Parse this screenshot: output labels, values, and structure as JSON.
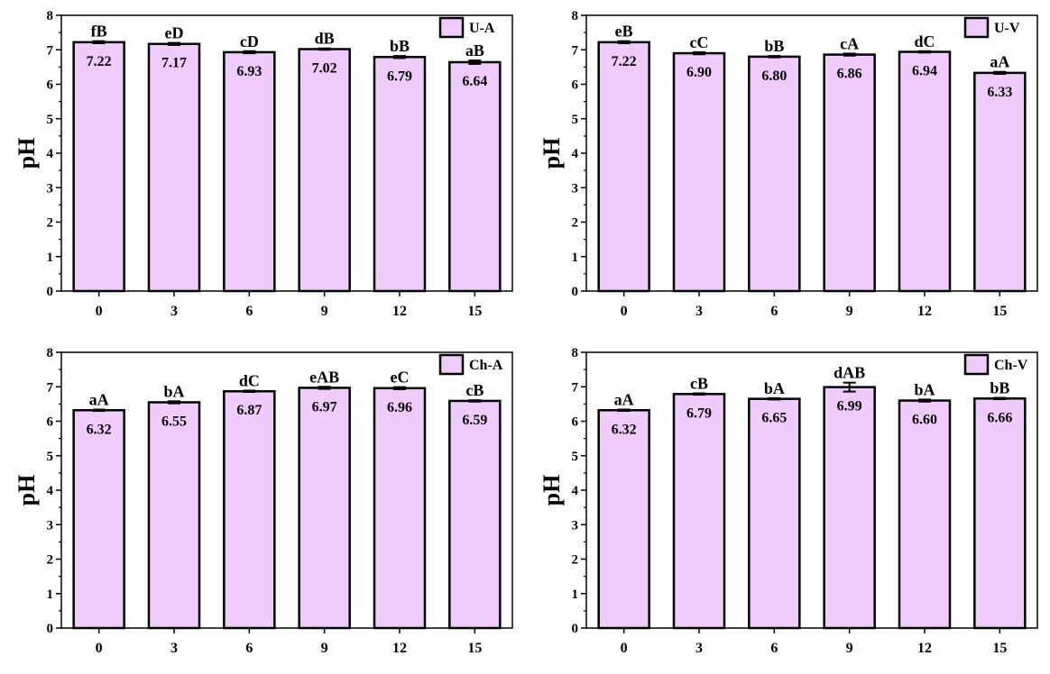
{
  "colors": {
    "bar_fill": "#f0ccfc",
    "bar_stroke": "#000000",
    "axis": "#000000"
  },
  "chart_data": [
    {
      "type": "bar",
      "ylabel": "pH",
      "ylim": [
        0,
        8
      ],
      "yticks": [
        "0",
        "1",
        "2",
        "3",
        "4",
        "5",
        "6",
        "7",
        "8"
      ],
      "categories": [
        "0",
        "3",
        "6",
        "9",
        "12",
        "15"
      ],
      "legend": {
        "label": "U-A",
        "position": "top-right"
      },
      "values": [
        7.22,
        7.17,
        6.93,
        7.02,
        6.79,
        6.64
      ],
      "value_labels": [
        "7.22",
        "7.17",
        "6.93",
        "7.02",
        "6.79",
        "6.64"
      ],
      "letters": [
        "fB",
        "eD",
        "cD",
        "dB",
        "bB",
        "aB"
      ],
      "errors": [
        0.03,
        0.03,
        0.03,
        0.02,
        0.03,
        0.05
      ]
    },
    {
      "type": "bar",
      "ylabel": "pH",
      "ylim": [
        0,
        8
      ],
      "yticks": [
        "0",
        "1",
        "2",
        "3",
        "4",
        "5",
        "6",
        "7",
        "8"
      ],
      "categories": [
        "0",
        "3",
        "6",
        "9",
        "12",
        "15"
      ],
      "legend": {
        "label": "U-V",
        "position": "top-right"
      },
      "values": [
        7.22,
        6.9,
        6.8,
        6.86,
        6.94,
        6.33
      ],
      "value_labels": [
        "7.22",
        "6.90",
        "6.80",
        "6.86",
        "6.94",
        "6.33"
      ],
      "letters": [
        "eB",
        "cC",
        "bB",
        "cA",
        "dC",
        "aA"
      ],
      "errors": [
        0.03,
        0.03,
        0.02,
        0.03,
        0.02,
        0.03
      ]
    },
    {
      "type": "bar",
      "ylabel": "pH",
      "ylim": [
        0,
        8
      ],
      "yticks": [
        "0",
        "1",
        "2",
        "3",
        "4",
        "5",
        "6",
        "7",
        "8"
      ],
      "categories": [
        "0",
        "3",
        "6",
        "9",
        "12",
        "15"
      ],
      "legend": {
        "label": "Ch-A",
        "position": "top-right"
      },
      "values": [
        6.32,
        6.55,
        6.87,
        6.97,
        6.96,
        6.59
      ],
      "value_labels": [
        "6.32",
        "6.55",
        "6.87",
        "6.97",
        "6.96",
        "6.59"
      ],
      "letters": [
        "aA",
        "bA",
        "dC",
        "eAB",
        "eC",
        "cB"
      ],
      "errors": [
        0.02,
        0.03,
        0.02,
        0.03,
        0.03,
        0.02
      ]
    },
    {
      "type": "bar",
      "ylabel": "pH",
      "ylim": [
        0,
        8
      ],
      "yticks": [
        "0",
        "1",
        "2",
        "3",
        "4",
        "5",
        "6",
        "7",
        "8"
      ],
      "categories": [
        "0",
        "3",
        "6",
        "9",
        "12",
        "15"
      ],
      "legend": {
        "label": "Ch-V",
        "position": "top-right"
      },
      "values": [
        6.32,
        6.79,
        6.65,
        6.99,
        6.6,
        6.66
      ],
      "value_labels": [
        "6.32",
        "6.79",
        "6.65",
        "6.99",
        "6.60",
        "6.66"
      ],
      "letters": [
        "aA",
        "cB",
        "bA",
        "dAB",
        "bA",
        "bB"
      ],
      "errors": [
        0.02,
        0.02,
        0.02,
        0.13,
        0.03,
        0.02
      ]
    }
  ]
}
